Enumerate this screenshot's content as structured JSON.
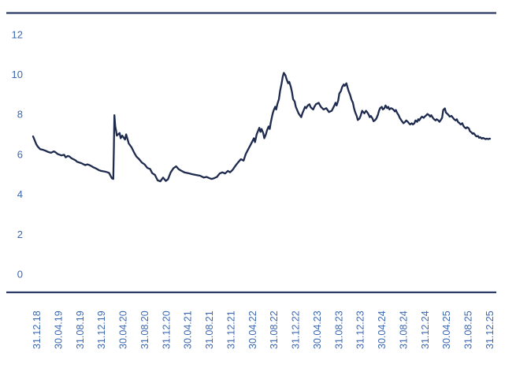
{
  "chart_data": {
    "type": "line",
    "title": "",
    "legend": [],
    "line_color": "#1e2b4e",
    "axis_rule_color": "#2b3a66",
    "tick_label_color": "#3b67b0",
    "background_color": "#ffffff",
    "y_ticks": [
      0,
      2,
      4,
      6,
      8,
      10,
      12
    ],
    "ylim": [
      0,
      13
    ],
    "x_tick_labels": [
      "31.12.18",
      "30.04.19",
      "31.08.19",
      "31.12.19",
      "30.04.20",
      "31.08.20",
      "31.12.20",
      "30.04.21",
      "31.08.21",
      "31.12.21",
      "30.04.22",
      "31.08.22",
      "31.12.22",
      "30.04.23",
      "31.08.23",
      "31.12.23",
      "30.04.24",
      "31.08.24",
      "31.12.24",
      "30.04.25",
      "31.08.25",
      "31.12.25"
    ],
    "x_unit": "months_since_31.12.18",
    "x_range_months": [
      0,
      84
    ],
    "series": [
      {
        "name": "value",
        "points": [
          [
            0,
            6.9
          ],
          [
            0.3,
            6.7
          ],
          [
            0.6,
            6.5
          ],
          [
            0.9,
            6.38
          ],
          [
            1.3,
            6.26
          ],
          [
            1.9,
            6.22
          ],
          [
            2.3,
            6.18
          ],
          [
            2.8,
            6.12
          ],
          [
            3.3,
            6.08
          ],
          [
            3.8,
            6.15
          ],
          [
            4.1,
            6.11
          ],
          [
            4.5,
            6.02
          ],
          [
            5.2,
            5.95
          ],
          [
            5.7,
            5.98
          ],
          [
            6,
            5.85
          ],
          [
            6.4,
            5.92
          ],
          [
            6.7,
            5.89
          ],
          [
            7.1,
            5.8
          ],
          [
            7.4,
            5.76
          ],
          [
            7.8,
            5.7
          ],
          [
            8.1,
            5.63
          ],
          [
            8.6,
            5.58
          ],
          [
            8.9,
            5.56
          ],
          [
            9.3,
            5.5
          ],
          [
            9.6,
            5.46
          ],
          [
            10,
            5.5
          ],
          [
            10.3,
            5.47
          ],
          [
            10.8,
            5.4
          ],
          [
            11,
            5.36
          ],
          [
            11.5,
            5.3
          ],
          [
            11.8,
            5.26
          ],
          [
            12.2,
            5.2
          ],
          [
            12.5,
            5.17
          ],
          [
            12.9,
            5.15
          ],
          [
            13.2,
            5.14
          ],
          [
            13.7,
            5.1
          ],
          [
            14,
            5.06
          ],
          [
            14.2,
            4.95
          ],
          [
            14.5,
            4.8
          ],
          [
            14.75,
            4.77
          ],
          [
            14.85,
            6.2
          ],
          [
            14.95,
            7.96
          ],
          [
            15.1,
            7.4
          ],
          [
            15.25,
            7.2
          ],
          [
            15.4,
            6.94
          ],
          [
            15.9,
            7.07
          ],
          [
            16.1,
            6.81
          ],
          [
            16.4,
            6.94
          ],
          [
            16.9,
            6.74
          ],
          [
            17.1,
            7
          ],
          [
            17.6,
            6.54
          ],
          [
            18.1,
            6.35
          ],
          [
            18.6,
            6.08
          ],
          [
            19,
            5.89
          ],
          [
            19.5,
            5.76
          ],
          [
            20,
            5.59
          ],
          [
            20.5,
            5.5
          ],
          [
            21,
            5.32
          ],
          [
            21.5,
            5.27
          ],
          [
            21.9,
            5.06
          ],
          [
            22.4,
            4.97
          ],
          [
            22.9,
            4.7
          ],
          [
            23.4,
            4.65
          ],
          [
            23.9,
            4.84
          ],
          [
            24.4,
            4.67
          ],
          [
            24.8,
            4.75
          ],
          [
            25.3,
            5.1
          ],
          [
            25.8,
            5.3
          ],
          [
            26.3,
            5.4
          ],
          [
            26.8,
            5.25
          ],
          [
            27.3,
            5.17
          ],
          [
            27.8,
            5.1
          ],
          [
            28.5,
            5.06
          ],
          [
            29.2,
            5.01
          ],
          [
            29.9,
            4.97
          ],
          [
            30.7,
            4.93
          ],
          [
            31.4,
            4.84
          ],
          [
            31.9,
            4.87
          ],
          [
            32.4,
            4.81
          ],
          [
            32.8,
            4.77
          ],
          [
            33.3,
            4.81
          ],
          [
            33.8,
            4.87
          ],
          [
            34.3,
            5.04
          ],
          [
            34.8,
            5.1
          ],
          [
            35.3,
            5.04
          ],
          [
            35.8,
            5.17
          ],
          [
            36.2,
            5.1
          ],
          [
            36.7,
            5.23
          ],
          [
            37.2,
            5.43
          ],
          [
            37.7,
            5.6
          ],
          [
            38.2,
            5.76
          ],
          [
            38.7,
            5.69
          ],
          [
            39.1,
            6.02
          ],
          [
            39.6,
            6.28
          ],
          [
            40.1,
            6.54
          ],
          [
            40.6,
            6.81
          ],
          [
            40.8,
            6.61
          ],
          [
            41.1,
            7
          ],
          [
            41.6,
            7.33
          ],
          [
            41.8,
            7.13
          ],
          [
            42,
            7.27
          ],
          [
            42.3,
            7.07
          ],
          [
            42.5,
            6.81
          ],
          [
            42.8,
            7
          ],
          [
            43,
            7.2
          ],
          [
            43.3,
            7.4
          ],
          [
            43.5,
            7.27
          ],
          [
            43.7,
            7.59
          ],
          [
            44,
            7.99
          ],
          [
            44.2,
            8.18
          ],
          [
            44.5,
            8.38
          ],
          [
            44.7,
            8.25
          ],
          [
            44.9,
            8.51
          ],
          [
            45.2,
            8.77
          ],
          [
            45.4,
            9.17
          ],
          [
            45.7,
            9.56
          ],
          [
            45.9,
            9.89
          ],
          [
            46.1,
            10.08
          ],
          [
            46.4,
            9.95
          ],
          [
            46.6,
            9.76
          ],
          [
            46.9,
            9.56
          ],
          [
            47.1,
            9.63
          ],
          [
            47.4,
            9.36
          ],
          [
            47.6,
            9.1
          ],
          [
            47.8,
            8.77
          ],
          [
            48.1,
            8.64
          ],
          [
            48.3,
            8.38
          ],
          [
            48.6,
            8.18
          ],
          [
            48.8,
            8.05
          ],
          [
            49.3,
            7.86
          ],
          [
            49.5,
            8.05
          ],
          [
            49.8,
            8.25
          ],
          [
            50,
            8.38
          ],
          [
            50.2,
            8.31
          ],
          [
            50.5,
            8.45
          ],
          [
            50.8,
            8.51
          ],
          [
            51,
            8.38
          ],
          [
            51.2,
            8.31
          ],
          [
            51.5,
            8.25
          ],
          [
            51.7,
            8.38
          ],
          [
            52,
            8.51
          ],
          [
            52.5,
            8.58
          ],
          [
            52.9,
            8.38
          ],
          [
            53.4,
            8.25
          ],
          [
            53.9,
            8.31
          ],
          [
            54.4,
            8.12
          ],
          [
            54.9,
            8.18
          ],
          [
            55.4,
            8.45
          ],
          [
            55.6,
            8.58
          ],
          [
            55.8,
            8.45
          ],
          [
            56.1,
            8.71
          ],
          [
            56.3,
            9.04
          ],
          [
            56.6,
            9.17
          ],
          [
            56.8,
            9.36
          ],
          [
            57.1,
            9.5
          ],
          [
            57.3,
            9.43
          ],
          [
            57.6,
            9.56
          ],
          [
            57.8,
            9.36
          ],
          [
            58,
            9.17
          ],
          [
            58.3,
            8.97
          ],
          [
            58.5,
            8.77
          ],
          [
            58.8,
            8.58
          ],
          [
            59,
            8.31
          ],
          [
            59.2,
            8.12
          ],
          [
            59.5,
            7.92
          ],
          [
            59.7,
            7.72
          ],
          [
            60,
            7.79
          ],
          [
            60.2,
            7.92
          ],
          [
            60.5,
            8.18
          ],
          [
            60.7,
            8.12
          ],
          [
            60.9,
            8.05
          ],
          [
            61.2,
            8.18
          ],
          [
            61.4,
            8.12
          ],
          [
            61.7,
            7.99
          ],
          [
            61.9,
            7.86
          ],
          [
            62.1,
            7.92
          ],
          [
            62.4,
            7.79
          ],
          [
            62.6,
            7.66
          ],
          [
            62.9,
            7.72
          ],
          [
            63.1,
            7.79
          ],
          [
            63.4,
            7.99
          ],
          [
            63.6,
            8.18
          ],
          [
            63.8,
            8.31
          ],
          [
            64.1,
            8.38
          ],
          [
            64.3,
            8.25
          ],
          [
            64.6,
            8.31
          ],
          [
            64.8,
            8.45
          ],
          [
            65.1,
            8.31
          ],
          [
            65.3,
            8.38
          ],
          [
            65.5,
            8.25
          ],
          [
            65.8,
            8.31
          ],
          [
            66,
            8.29
          ],
          [
            66.3,
            8.22
          ],
          [
            66.5,
            8.15
          ],
          [
            66.7,
            8.22
          ],
          [
            66.9,
            8.09
          ],
          [
            67.2,
            7.96
          ],
          [
            67.4,
            7.83
          ],
          [
            67.7,
            7.7
          ],
          [
            67.9,
            7.63
          ],
          [
            68.1,
            7.56
          ],
          [
            68.4,
            7.63
          ],
          [
            68.6,
            7.7
          ],
          [
            68.9,
            7.63
          ],
          [
            69.1,
            7.56
          ],
          [
            69.3,
            7.5
          ],
          [
            69.6,
            7.56
          ],
          [
            69.8,
            7.5
          ],
          [
            70.1,
            7.56
          ],
          [
            70.3,
            7.7
          ],
          [
            70.6,
            7.63
          ],
          [
            70.8,
            7.76
          ],
          [
            71,
            7.7
          ],
          [
            71.3,
            7.83
          ],
          [
            71.5,
            7.89
          ],
          [
            71.8,
            7.83
          ],
          [
            72,
            7.89
          ],
          [
            72.3,
            7.96
          ],
          [
            72.5,
            8.02
          ],
          [
            72.8,
            7.96
          ],
          [
            73,
            7.89
          ],
          [
            73.2,
            7.96
          ],
          [
            73.5,
            7.83
          ],
          [
            73.7,
            7.76
          ],
          [
            74,
            7.7
          ],
          [
            74.2,
            7.76
          ],
          [
            74.5,
            7.7
          ],
          [
            74.7,
            7.63
          ],
          [
            74.9,
            7.7
          ],
          [
            75.2,
            7.83
          ],
          [
            75.4,
            8.22
          ],
          [
            75.7,
            8.3
          ],
          [
            75.9,
            8.09
          ],
          [
            76.2,
            8.02
          ],
          [
            76.4,
            7.96
          ],
          [
            76.6,
            7.89
          ],
          [
            76.9,
            7.93
          ],
          [
            77.2,
            7.83
          ],
          [
            77.4,
            7.76
          ],
          [
            77.7,
            7.7
          ],
          [
            77.9,
            7.76
          ],
          [
            78.1,
            7.63
          ],
          [
            78.4,
            7.56
          ],
          [
            78.6,
            7.5
          ],
          [
            78.9,
            7.56
          ],
          [
            79.1,
            7.43
          ],
          [
            79.3,
            7.36
          ],
          [
            79.6,
            7.3
          ],
          [
            79.8,
            7.36
          ],
          [
            80.1,
            7.3
          ],
          [
            80.3,
            7.16
          ],
          [
            80.6,
            7.1
          ],
          [
            80.8,
            7.03
          ],
          [
            81,
            7.06
          ],
          [
            81.3,
            6.96
          ],
          [
            81.5,
            6.9
          ],
          [
            81.8,
            6.92
          ],
          [
            82,
            6.83
          ],
          [
            82.2,
            6.86
          ],
          [
            82.5,
            6.79
          ],
          [
            82.7,
            6.83
          ],
          [
            83,
            6.79
          ],
          [
            83.2,
            6.76
          ],
          [
            83.4,
            6.79
          ],
          [
            83.7,
            6.76
          ],
          [
            83.9,
            6.79
          ],
          [
            84,
            6.78
          ]
        ]
      }
    ],
    "layout_hints": {
      "grid": false,
      "legend_position": "none",
      "top_rule": true,
      "bottom_rule": true,
      "x_labels_rotated_degrees": -90
    }
  }
}
